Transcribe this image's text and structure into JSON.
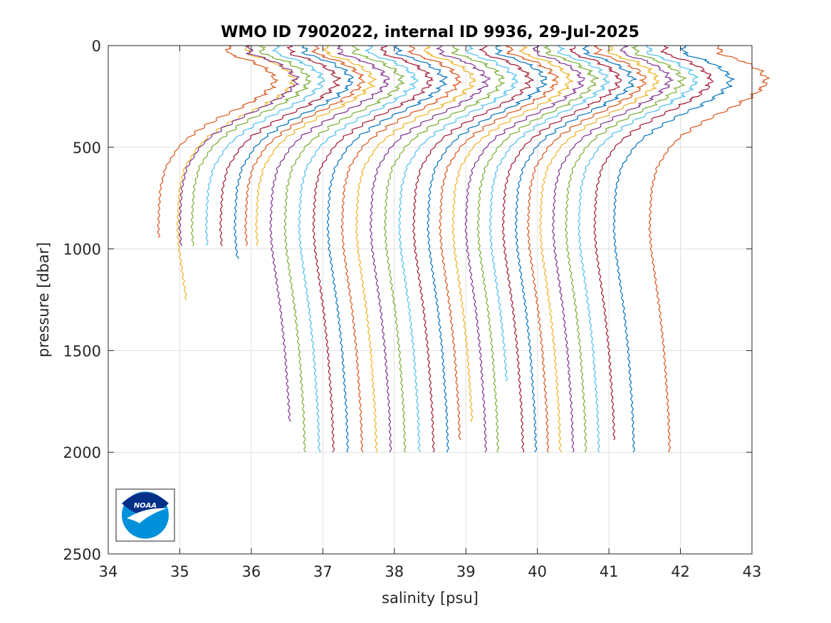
{
  "chart_data": {
    "type": "line",
    "title": "WMO ID 7902022, internal ID 9936, 29-Jul-2025",
    "xlabel": "salinity [psu]",
    "ylabel": "pressure [dbar]",
    "xlim": [
      34,
      43
    ],
    "ylim": [
      0,
      2500
    ],
    "y_reversed": true,
    "grid": true,
    "x_ticks": [
      "34",
      "35",
      "36",
      "37",
      "38",
      "39",
      "40",
      "41",
      "42",
      "43"
    ],
    "y_ticks": [
      "0",
      "500",
      "1000",
      "1500",
      "2000",
      "2500"
    ],
    "profile_note": "Waterfall of CTD profiles; each profile is offset along the salinity axis.",
    "profile_shape": {
      "pressure": [
        0,
        40,
        80,
        120,
        160,
        200,
        250,
        300,
        350,
        400,
        450,
        500,
        600,
        700,
        800,
        900,
        1000,
        1100,
        1200,
        1300,
        1400,
        1500,
        1600,
        1700,
        1800,
        1900,
        2000
      ],
      "salinity_offset": [
        0.0,
        0.0,
        0.35,
        0.55,
        0.65,
        0.62,
        0.45,
        0.2,
        -0.1,
        -0.35,
        -0.55,
        -0.7,
        -0.88,
        -0.95,
        -0.97,
        -0.98,
        -0.96,
        -0.92,
        -0.88,
        -0.84,
        -0.81,
        -0.78,
        -0.76,
        -0.74,
        -0.72,
        -0.71,
        -0.7
      ]
    },
    "series": [
      {
        "color": "#D95319",
        "surface": 35.68,
        "max_pressure": 945
      },
      {
        "color": "#EDB120",
        "surface": 35.95,
        "max_pressure": 1250
      },
      {
        "color": "#7E2F8E",
        "surface": 35.98,
        "max_pressure": 985
      },
      {
        "color": "#77AC30",
        "surface": 36.15,
        "max_pressure": 985
      },
      {
        "color": "#4DBEEE",
        "surface": 36.35,
        "max_pressure": 985
      },
      {
        "color": "#A2142F",
        "surface": 36.55,
        "max_pressure": 985
      },
      {
        "color": "#0072BD",
        "surface": 36.75,
        "max_pressure": 1050
      },
      {
        "color": "#D95319",
        "surface": 36.9,
        "max_pressure": 985
      },
      {
        "color": "#EDB120",
        "surface": 37.05,
        "max_pressure": 985
      },
      {
        "color": "#7E2F8E",
        "surface": 37.25,
        "max_pressure": 1850
      },
      {
        "color": "#77AC30",
        "surface": 37.45,
        "max_pressure": 2000
      },
      {
        "color": "#4DBEEE",
        "surface": 37.65,
        "max_pressure": 2000
      },
      {
        "color": "#A2142F",
        "surface": 37.85,
        "max_pressure": 2000
      },
      {
        "color": "#0072BD",
        "surface": 38.05,
        "max_pressure": 2000
      },
      {
        "color": "#D95319",
        "surface": 38.25,
        "max_pressure": 2000
      },
      {
        "color": "#EDB120",
        "surface": 38.45,
        "max_pressure": 2000
      },
      {
        "color": "#7E2F8E",
        "surface": 38.65,
        "max_pressure": 2000
      },
      {
        "color": "#77AC30",
        "surface": 38.85,
        "max_pressure": 2000
      },
      {
        "color": "#4DBEEE",
        "surface": 39.05,
        "max_pressure": 2000
      },
      {
        "color": "#A2142F",
        "surface": 39.25,
        "max_pressure": 2000
      },
      {
        "color": "#0072BD",
        "surface": 39.45,
        "max_pressure": 2000
      },
      {
        "color": "#D95319",
        "surface": 39.62,
        "max_pressure": 1940
      },
      {
        "color": "#EDB120",
        "surface": 39.8,
        "max_pressure": 1850
      },
      {
        "color": "#7E2F8E",
        "surface": 39.98,
        "max_pressure": 2000
      },
      {
        "color": "#77AC30",
        "surface": 40.15,
        "max_pressure": 2000
      },
      {
        "color": "#4DBEEE",
        "surface": 40.32,
        "max_pressure": 1650
      },
      {
        "color": "#A2142F",
        "surface": 40.5,
        "max_pressure": 2000
      },
      {
        "color": "#0072BD",
        "surface": 40.68,
        "max_pressure": 2000
      },
      {
        "color": "#D95319",
        "surface": 40.85,
        "max_pressure": 2000
      },
      {
        "color": "#EDB120",
        "surface": 41.02,
        "max_pressure": 2000
      },
      {
        "color": "#7E2F8E",
        "surface": 41.2,
        "max_pressure": 2000
      },
      {
        "color": "#77AC30",
        "surface": 41.38,
        "max_pressure": 2000
      },
      {
        "color": "#4DBEEE",
        "surface": 41.56,
        "max_pressure": 2000
      },
      {
        "color": "#A2142F",
        "surface": 41.78,
        "max_pressure": 1940
      },
      {
        "color": "#0072BD",
        "surface": 42.05,
        "max_pressure": 2000
      },
      {
        "color": "#D95319",
        "surface": 42.55,
        "max_pressure": 2000
      }
    ]
  },
  "logo": {
    "text": "NOAA",
    "colors": {
      "navy": "#003087",
      "blue": "#0091DA"
    }
  }
}
